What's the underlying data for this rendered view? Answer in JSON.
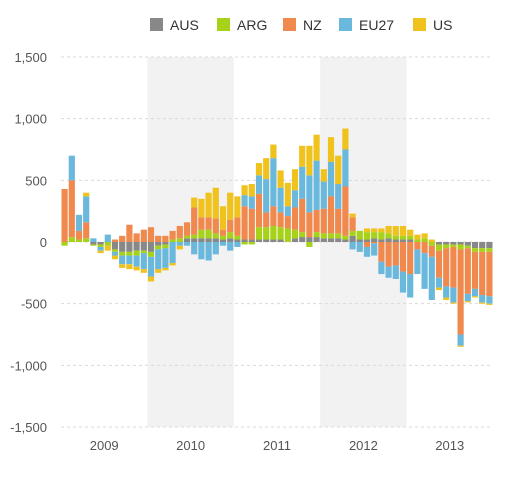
{
  "chart_data": {
    "type": "bar",
    "stacked": true,
    "title": "",
    "xlabel": "",
    "ylabel": "",
    "ylim": [
      -1500,
      1500
    ],
    "yticks": [
      1500,
      1000,
      500,
      0,
      -500,
      -1000,
      -1500
    ],
    "ytick_labels": [
      "1,500",
      "1,000",
      "500",
      "0",
      "-500",
      "-1,000",
      "-1,500"
    ],
    "xtick_labels": [
      "2009",
      "2010",
      "2011",
      "2012",
      "2013"
    ],
    "legend_position": "top",
    "grid": true,
    "shaded_years": [
      "2010",
      "2012"
    ],
    "months": [
      "2009-01",
      "2009-02",
      "2009-03",
      "2009-04",
      "2009-05",
      "2009-06",
      "2009-07",
      "2009-08",
      "2009-09",
      "2009-10",
      "2009-11",
      "2009-12",
      "2010-01",
      "2010-02",
      "2010-03",
      "2010-04",
      "2010-05",
      "2010-06",
      "2010-07",
      "2010-08",
      "2010-09",
      "2010-10",
      "2010-11",
      "2010-12",
      "2011-01",
      "2011-02",
      "2011-03",
      "2011-04",
      "2011-05",
      "2011-06",
      "2011-07",
      "2011-08",
      "2011-09",
      "2011-10",
      "2011-11",
      "2011-12",
      "2012-01",
      "2012-02",
      "2012-03",
      "2012-04",
      "2012-05",
      "2012-06",
      "2012-07",
      "2012-08",
      "2012-09",
      "2012-10",
      "2012-11",
      "2012-12",
      "2013-01",
      "2013-02",
      "2013-03",
      "2013-04",
      "2013-05",
      "2013-06",
      "2013-07",
      "2013-08",
      "2013-09",
      "2013-10",
      "2013-11",
      "2013-12"
    ],
    "series": [
      {
        "name": "AUS",
        "color": "#888888",
        "values": [
          0,
          0,
          0,
          0,
          -20,
          -20,
          0,
          -60,
          -80,
          -80,
          -70,
          -70,
          -80,
          -30,
          -20,
          0,
          0,
          30,
          30,
          30,
          30,
          30,
          20,
          30,
          20,
          20,
          20,
          20,
          20,
          20,
          20,
          0,
          30,
          40,
          40,
          40,
          30,
          30,
          30,
          20,
          50,
          20,
          20,
          30,
          20,
          30,
          20,
          20,
          20,
          0,
          0,
          0,
          -20,
          -20,
          -20,
          -20,
          -30,
          -50,
          -50,
          -50
        ]
      },
      {
        "name": "ARG",
        "color": "#a6d21a",
        "values": [
          -30,
          40,
          20,
          30,
          -10,
          -20,
          -30,
          -20,
          -30,
          -30,
          -40,
          -20,
          -40,
          -30,
          -30,
          20,
          30,
          20,
          30,
          70,
          70,
          40,
          30,
          50,
          30,
          -20,
          -20,
          100,
          100,
          110,
          100,
          110,
          70,
          40,
          -40,
          40,
          40,
          40,
          40,
          30,
          40,
          70,
          60,
          50,
          60,
          40,
          30,
          30,
          30,
          20,
          30,
          -30,
          -50,
          -30,
          -20,
          -40,
          -20,
          -30,
          -30,
          -30
        ]
      },
      {
        "name": "NZ",
        "color": "#f0894e",
        "values": [
          430,
          460,
          70,
          130,
          0,
          0,
          0,
          20,
          50,
          140,
          70,
          100,
          120,
          50,
          50,
          70,
          100,
          110,
          220,
          100,
          100,
          120,
          50,
          100,
          150,
          270,
          250,
          270,
          120,
          160,
          120,
          100,
          180,
          270,
          200,
          180,
          200,
          300,
          200,
          400,
          110,
          0,
          -40,
          -10,
          -160,
          -200,
          -190,
          -240,
          -260,
          -60,
          -90,
          -90,
          -220,
          -310,
          -330,
          -690,
          -370,
          -300,
          -350,
          -360
        ]
      },
      {
        "name": "EU27",
        "color": "#6bb8dd",
        "values": [
          0,
          200,
          130,
          210,
          30,
          -30,
          60,
          -30,
          -70,
          -70,
          -90,
          -130,
          -160,
          -160,
          -160,
          -170,
          -30,
          -30,
          -100,
          -140,
          -150,
          -100,
          -30,
          -70,
          -40,
          90,
          100,
          150,
          270,
          390,
          200,
          80,
          140,
          260,
          300,
          400,
          220,
          280,
          200,
          300,
          -60,
          -80,
          -80,
          -100,
          -100,
          -90,
          -110,
          -170,
          -190,
          -200,
          -290,
          -350,
          -80,
          -90,
          -120,
          -90,
          -60,
          -60,
          -60,
          -60
        ]
      },
      {
        "name": "US",
        "color": "#efc21d",
        "values": [
          0,
          0,
          0,
          30,
          0,
          -20,
          -40,
          -30,
          -30,
          -40,
          -30,
          -30,
          -40,
          -30,
          -20,
          -20,
          -30,
          0,
          80,
          150,
          200,
          250,
          190,
          220,
          170,
          80,
          100,
          100,
          170,
          110,
          140,
          190,
          170,
          170,
          240,
          210,
          100,
          200,
          230,
          170,
          30,
          0,
          30,
          30,
          30,
          60,
          80,
          80,
          50,
          40,
          40,
          20,
          -20,
          -20,
          -10,
          -10,
          -10,
          -10,
          -10,
          -10
        ]
      }
    ]
  },
  "legend": {
    "items": [
      {
        "label": "AUS",
        "color": "#888888"
      },
      {
        "label": "ARG",
        "color": "#a6d21a"
      },
      {
        "label": "NZ",
        "color": "#f0894e"
      },
      {
        "label": "EU27",
        "color": "#6bb8dd"
      },
      {
        "label": "US",
        "color": "#efc21d"
      }
    ]
  }
}
